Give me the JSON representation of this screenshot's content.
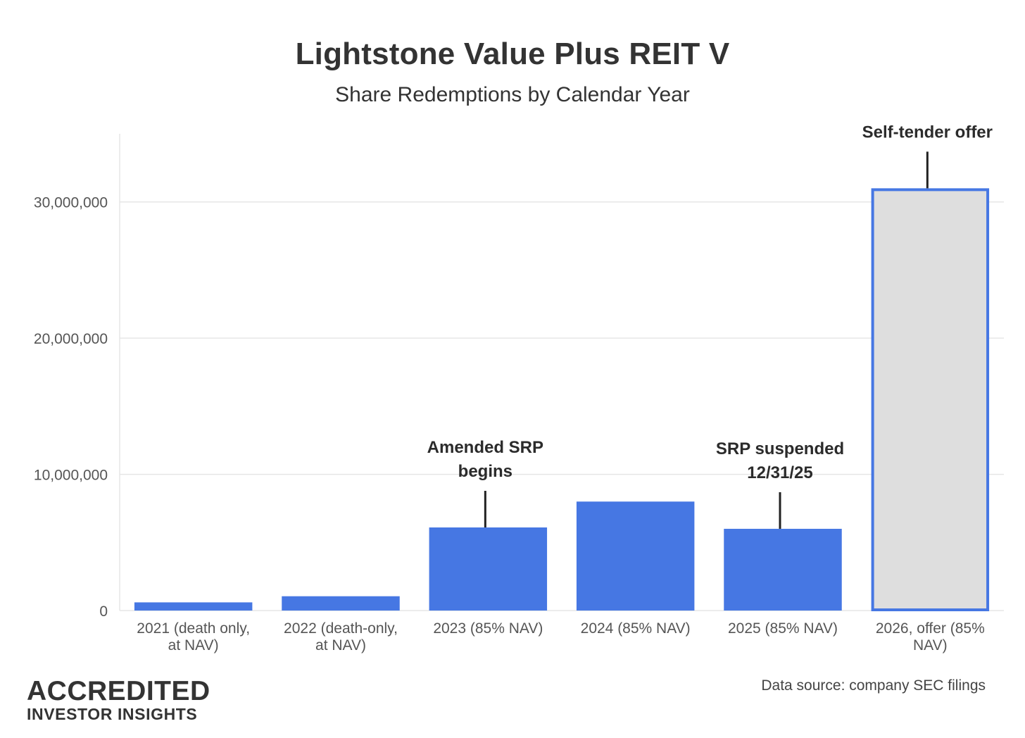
{
  "chart_data": {
    "type": "bar",
    "title": "Lightstone Value Plus REIT V",
    "subtitle": "Share Redemptions by Calendar Year",
    "xlabel": "",
    "ylabel": "",
    "ylim": [
      0,
      35000000
    ],
    "yticks": [
      0,
      10000000,
      20000000,
      30000000
    ],
    "ytick_labels": [
      "0",
      "10,000,000",
      "20,000,000",
      "30,000,000"
    ],
    "grid": true,
    "categories": [
      [
        "2021 (death only,",
        "at NAV)"
      ],
      [
        "2022 (death-only,",
        "at NAV)"
      ],
      [
        "2023 (85% NAV)"
      ],
      [
        "2024 (85% NAV)"
      ],
      [
        "2025 (85% NAV)"
      ],
      [
        "2026, offer (85%",
        "NAV)"
      ]
    ],
    "values": [
      600000,
      1050000,
      6100000,
      8000000,
      6000000,
      31000000
    ],
    "bar_styles": [
      "solid",
      "solid",
      "solid",
      "solid",
      "solid",
      "outlined"
    ],
    "annotations": [
      {
        "category_index": 2,
        "lines": [
          "Amended SRP",
          "begins"
        ]
      },
      {
        "category_index": 4,
        "lines": [
          "SRP suspended",
          "12/31/25"
        ]
      },
      {
        "category_index": 5,
        "lines": [
          "Self-tender offer"
        ]
      }
    ],
    "colors": {
      "bar": "#4677e3",
      "outlined_fill": "#dedede",
      "outlined_stroke": "#4677e3",
      "grid": "#e6e6e6",
      "annotation_line": "#222222"
    }
  },
  "logo": {
    "line1": "ACCREDITED",
    "line2": "INVESTOR INSIGHTS"
  },
  "source": "Data source: company SEC filings"
}
